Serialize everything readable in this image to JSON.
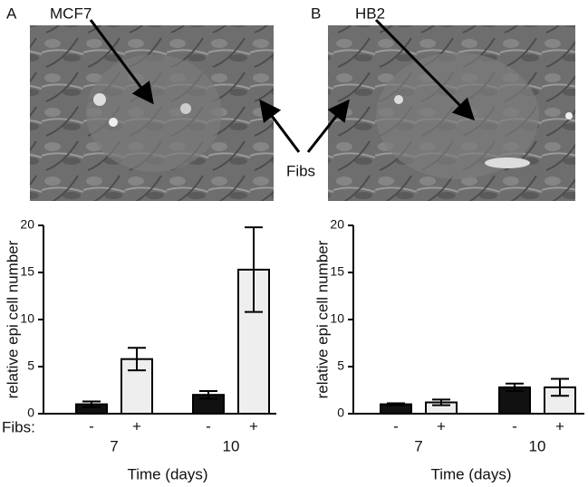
{
  "figure": {
    "panels": [
      {
        "label": "A",
        "cell_line": "MCF7"
      },
      {
        "label": "B",
        "cell_line": "HB2"
      }
    ],
    "annotation": "Fibs"
  },
  "chart_data": [
    {
      "type": "bar",
      "y_label": "relative epi cell number",
      "x_label": "Time (days)",
      "row_label": "Fibs:",
      "categories": [
        "7",
        "10"
      ],
      "series": [
        {
          "name": "-",
          "color": "#111111",
          "values": [
            1.0,
            2.0
          ],
          "errors": [
            0.3,
            0.4
          ]
        },
        {
          "name": "+",
          "color": "#eeeeee",
          "values": [
            5.8,
            15.3
          ],
          "errors": [
            1.2,
            4.5
          ]
        }
      ],
      "ylim": [
        0,
        20
      ],
      "yticks": [
        0,
        5,
        10,
        15,
        20
      ]
    },
    {
      "type": "bar",
      "y_label": "relative epi cell number",
      "x_label": "Time (days)",
      "categories": [
        "7",
        "10"
      ],
      "series": [
        {
          "name": "-",
          "color": "#111111",
          "values": [
            1.0,
            2.8
          ],
          "errors": [
            0.1,
            0.4
          ]
        },
        {
          "name": "+",
          "color": "#eeeeee",
          "values": [
            1.2,
            2.8
          ],
          "errors": [
            0.3,
            0.9
          ]
        }
      ],
      "ylim": [
        0,
        20
      ],
      "yticks": [
        0,
        5,
        10,
        15,
        20
      ]
    }
  ]
}
